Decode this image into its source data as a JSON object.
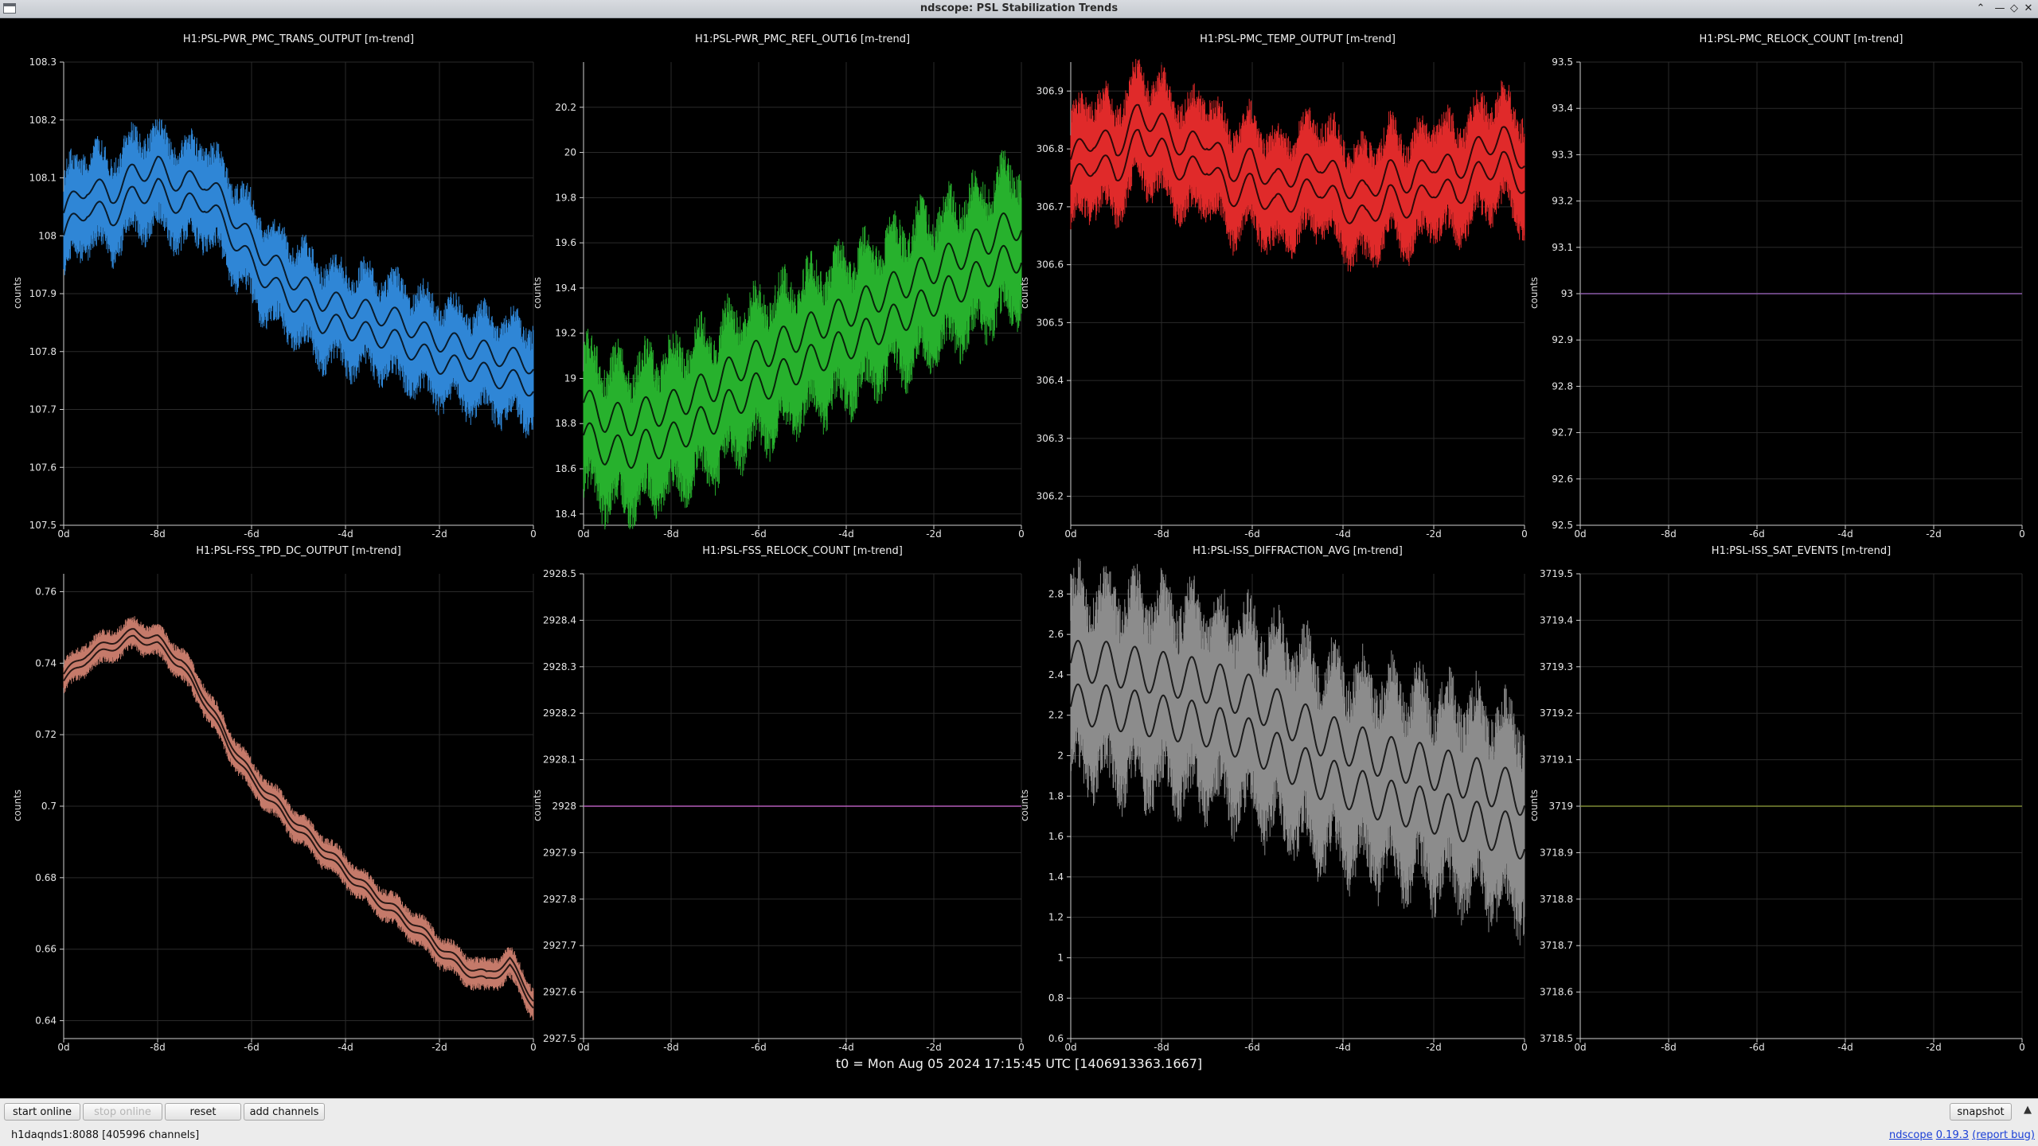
{
  "window": {
    "title": "ndscope: PSL Stabilization Trends"
  },
  "colors": {
    "background": "#000000",
    "grid": "#2a2a2a",
    "axis": "#cfcfcf",
    "text": "#e6e6e6"
  },
  "plots": [
    {
      "title": "H1:PSL-PWR_PMC_TRANS_OUTPUT [m-trend]",
      "ylabel": "counts",
      "color": "#2f86d6",
      "yticks": [
        "107.5",
        "107.6",
        "107.7",
        "107.8",
        "107.9",
        "108",
        "108.1",
        "108.2",
        "108.3"
      ],
      "xticks": [
        "0d",
        "-8d",
        "-6d",
        "-4d",
        "-2d",
        "0"
      ],
      "chart_data": {
        "type": "line",
        "ylim": [
          107.5,
          108.3
        ],
        "x": [
          -10,
          -9.5,
          -9,
          -8.5,
          -8,
          -7.5,
          -7,
          -6.5,
          -6,
          -5.5,
          -5,
          -4.5,
          -4,
          -3.5,
          -3,
          -2.5,
          -2,
          -1.5,
          -1,
          -0.5,
          0
        ],
        "series": [
          {
            "values": [
              108.02,
              108.07,
              108.05,
              108.09,
              108.1,
              108.07,
              108.08,
              108.03,
              107.97,
              107.93,
              107.9,
              107.87,
              107.86,
              107.85,
              107.84,
              107.82,
              107.8,
              107.79,
              107.78,
              107.77,
              107.76
            ],
            "band": 0.16
          }
        ]
      }
    },
    {
      "title": "H1:PSL-PWR_PMC_REFL_OUT16 [m-trend]",
      "ylabel": "counts",
      "color": "#27b12d",
      "yticks": [
        "18.4",
        "18.6",
        "18.8",
        "19",
        "19.2",
        "19.4",
        "19.6",
        "19.8",
        "20",
        "20.2"
      ],
      "xticks": [
        "0d",
        "-8d",
        "-6d",
        "-4d",
        "-2d",
        "0"
      ],
      "chart_data": {
        "type": "line",
        "ylim": [
          18.35,
          20.4
        ],
        "x": [
          -10,
          -9.5,
          -9,
          -8.5,
          -8,
          -7.5,
          -7,
          -6.5,
          -6,
          -5.5,
          -5,
          -4.5,
          -4,
          -3.5,
          -3,
          -2.5,
          -2,
          -1.5,
          -1,
          -0.5,
          0
        ],
        "series": [
          {
            "values": [
              18.82,
              18.76,
              18.74,
              18.78,
              18.8,
              18.86,
              18.9,
              18.98,
              19.03,
              19.08,
              19.13,
              19.18,
              19.22,
              19.27,
              19.32,
              19.37,
              19.42,
              19.47,
              19.52,
              19.58,
              19.62
            ],
            "band": 0.6
          }
        ]
      }
    },
    {
      "title": "H1:PSL-PMC_TEMP_OUTPUT [m-trend]",
      "ylabel": "counts",
      "color": "#e02a2a",
      "yticks": [
        "306.2",
        "306.3",
        "306.4",
        "306.5",
        "306.6",
        "306.7",
        "306.8",
        "306.9"
      ],
      "xticks": [
        "0d",
        "-8d",
        "-6d",
        "-4d",
        "-2d",
        "0"
      ],
      "chart_data": {
        "type": "line",
        "ylim": [
          306.15,
          306.95
        ],
        "x": [
          -10,
          -9.5,
          -9,
          -8.5,
          -8,
          -7.5,
          -7,
          -6.5,
          -6,
          -5.5,
          -5,
          -4.5,
          -4,
          -3.5,
          -3,
          -2.5,
          -2,
          -1.5,
          -1,
          -0.5,
          0
        ],
        "series": [
          {
            "values": [
              306.76,
              306.8,
              306.78,
              306.84,
              306.82,
              306.78,
              306.8,
              306.74,
              306.76,
              306.72,
              306.74,
              306.76,
              306.72,
              306.7,
              306.74,
              306.72,
              306.76,
              306.74,
              306.78,
              306.8,
              306.76
            ],
            "band": 0.18
          }
        ]
      }
    },
    {
      "title": "H1:PSL-PMC_RELOCK_COUNT [m-trend]",
      "ylabel": "counts",
      "color": "#8a5aa8",
      "yticks": [
        "92.5",
        "92.6",
        "92.7",
        "92.8",
        "92.9",
        "93",
        "93.1",
        "93.2",
        "93.3",
        "93.4",
        "93.5"
      ],
      "xticks": [
        "0d",
        "-8d",
        "-6d",
        "-4d",
        "-2d",
        "0"
      ],
      "chart_data": {
        "type": "line",
        "ylim": [
          92.5,
          93.5
        ],
        "x": [
          -10,
          0
        ],
        "series": [
          {
            "values": [
              93,
              93
            ],
            "band": 0
          }
        ]
      }
    },
    {
      "title": "H1:PSL-FSS_TPD_DC_OUTPUT [m-trend]",
      "ylabel": "counts",
      "color": "#c57a6a",
      "yticks": [
        "0.64",
        "0.66",
        "0.68",
        "0.7",
        "0.72",
        "0.74",
        "0.76"
      ],
      "xticks": [
        "0d",
        "-8d",
        "-6d",
        "-4d",
        "-2d",
        "0"
      ],
      "chart_data": {
        "type": "line",
        "ylim": [
          0.635,
          0.765
        ],
        "x": [
          -10,
          -9.5,
          -9,
          -8.5,
          -8,
          -7.5,
          -7,
          -6.5,
          -6,
          -5.5,
          -5,
          -4.5,
          -4,
          -3.5,
          -3,
          -2.5,
          -2,
          -1.5,
          -1,
          -0.5,
          0
        ],
        "series": [
          {
            "values": [
              0.736,
              0.742,
              0.745,
              0.748,
              0.746,
              0.74,
              0.73,
              0.718,
              0.708,
              0.701,
              0.694,
              0.688,
              0.682,
              0.676,
              0.671,
              0.666,
              0.66,
              0.655,
              0.652,
              0.656,
              0.645
            ],
            "band": 0.008
          }
        ]
      }
    },
    {
      "title": "H1:PSL-FSS_RELOCK_COUNT [m-trend]",
      "ylabel": "counts",
      "color": "#b45cb8",
      "yticks": [
        "2927.5",
        "2927.6",
        "2927.7",
        "2927.8",
        "2927.9",
        "2928",
        "2928.1",
        "2928.2",
        "2928.3",
        "2928.4",
        "2928.5"
      ],
      "xticks": [
        "0d",
        "-8d",
        "-6d",
        "-4d",
        "-2d",
        "0"
      ],
      "chart_data": {
        "type": "line",
        "ylim": [
          2927.5,
          2928.5
        ],
        "x": [
          -10,
          0
        ],
        "series": [
          {
            "values": [
              2928,
              2928
            ],
            "band": 0
          }
        ]
      }
    },
    {
      "title": "H1:PSL-ISS_DIFFRACTION_AVG [m-trend]",
      "ylabel": "counts",
      "color": "#8c8c8c",
      "yticks": [
        "0.6",
        "0.8",
        "1",
        "1.2",
        "1.4",
        "1.6",
        "1.8",
        "2",
        "2.2",
        "2.4",
        "2.6",
        "2.8"
      ],
      "xticks": [
        "0d",
        "-8d",
        "-6d",
        "-4d",
        "-2d",
        "0"
      ],
      "chart_data": {
        "type": "line",
        "ylim": [
          0.6,
          2.9
        ],
        "x": [
          -10,
          -9.5,
          -9,
          -8.5,
          -8,
          -7.5,
          -7,
          -6.5,
          -6,
          -5.5,
          -5,
          -4.5,
          -4,
          -3.5,
          -3,
          -2.5,
          -2,
          -1.5,
          -1,
          -0.5,
          0
        ],
        "series": [
          {
            "values": [
              2.35,
              2.36,
              2.34,
              2.32,
              2.3,
              2.28,
              2.26,
              2.22,
              2.18,
              2.12,
              2.06,
              2.0,
              1.96,
              1.92,
              1.88,
              1.86,
              1.83,
              1.8,
              1.77,
              1.73,
              1.7
            ],
            "band": 0.9
          }
        ]
      }
    },
    {
      "title": "H1:PSL-ISS_SAT_EVENTS [m-trend]",
      "ylabel": "counts",
      "color": "#7d8a36",
      "yticks": [
        "3718.5",
        "3718.6",
        "3718.7",
        "3718.8",
        "3718.9",
        "3719",
        "3719.1",
        "3719.2",
        "3719.3",
        "3719.4",
        "3719.5"
      ],
      "xticks": [
        "0d",
        "-8d",
        "-6d",
        "-4d",
        "-2d",
        "0"
      ],
      "chart_data": {
        "type": "line",
        "ylim": [
          3718.5,
          3719.5
        ],
        "x": [
          -10,
          0
        ],
        "series": [
          {
            "values": [
              3719,
              3719
            ],
            "band": 0
          }
        ]
      }
    }
  ],
  "t0_label": "t0 = Mon Aug 05 2024 17:15:45 UTC [1406913363.1667]",
  "toolbar": {
    "start_online": "start online",
    "stop_online": "stop online",
    "reset": "reset",
    "add_channels": "add channels",
    "snapshot": "snapshot"
  },
  "status": {
    "server": "h1daqnds1:8088  [405996 channels]",
    "app_link": "ndscope",
    "version": "0.19.3",
    "report_bug": "(report bug)"
  }
}
